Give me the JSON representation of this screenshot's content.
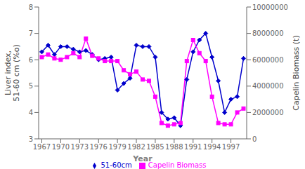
{
  "chart_data": {
    "type": "line",
    "xlabel": "Year",
    "ylabel": "Liver index,\n51-60 cm (%o)",
    "y2label": "Capelin Biomass (t)",
    "x": [
      1967,
      1968,
      1969,
      1970,
      1971,
      1972,
      1973,
      1974,
      1975,
      1976,
      1977,
      1978,
      1979,
      1980,
      1981,
      1982,
      1983,
      1984,
      1985,
      1986,
      1987,
      1988,
      1989,
      1990,
      1991,
      1992,
      1993,
      1994,
      1995,
      1996,
      1997,
      1998,
      1999
    ],
    "series": [
      {
        "name": "51-60cm",
        "color": "#0000cc",
        "marker": "diamond",
        "values": [
          6.3,
          6.55,
          6.2,
          6.5,
          6.5,
          6.4,
          6.3,
          6.35,
          6.2,
          6.0,
          6.05,
          6.1,
          4.85,
          5.1,
          5.3,
          6.55,
          6.5,
          6.5,
          6.1,
          4.0,
          3.75,
          3.8,
          3.5,
          5.25,
          6.3,
          6.75,
          7.0,
          6.1,
          5.2,
          4.0,
          4.5,
          4.6,
          6.05
        ]
      },
      {
        "name": "Capelin Biomass",
        "color": "#ff00ff",
        "marker": "square",
        "axis": "y2",
        "values": [
          6200000,
          6400000,
          6100000,
          6000000,
          6200000,
          6500000,
          6200000,
          7600000,
          6300000,
          6100000,
          5900000,
          5900000,
          5900000,
          5200000,
          4900000,
          5100000,
          4500000,
          4400000,
          3200000,
          1200000,
          1000000,
          1100000,
          1200000,
          5900000,
          7500000,
          6500000,
          5900000,
          3200000,
          1200000,
          1100000,
          1100000,
          2000000,
          2300000
        ]
      }
    ],
    "xlim": [
      1966.5,
      1999.5
    ],
    "xticks": [
      1967,
      1970,
      1973,
      1976,
      1979,
      1982,
      1985,
      1988,
      1991,
      1994,
      1997
    ],
    "ylim": [
      3,
      8
    ],
    "yticks": [
      3,
      4,
      5,
      6,
      7,
      8
    ],
    "y2lim": [
      0,
      10000000
    ],
    "y2ticks": [
      0,
      2000000,
      4000000,
      6000000,
      8000000,
      10000000
    ],
    "grid": false,
    "legend": "bottom"
  }
}
